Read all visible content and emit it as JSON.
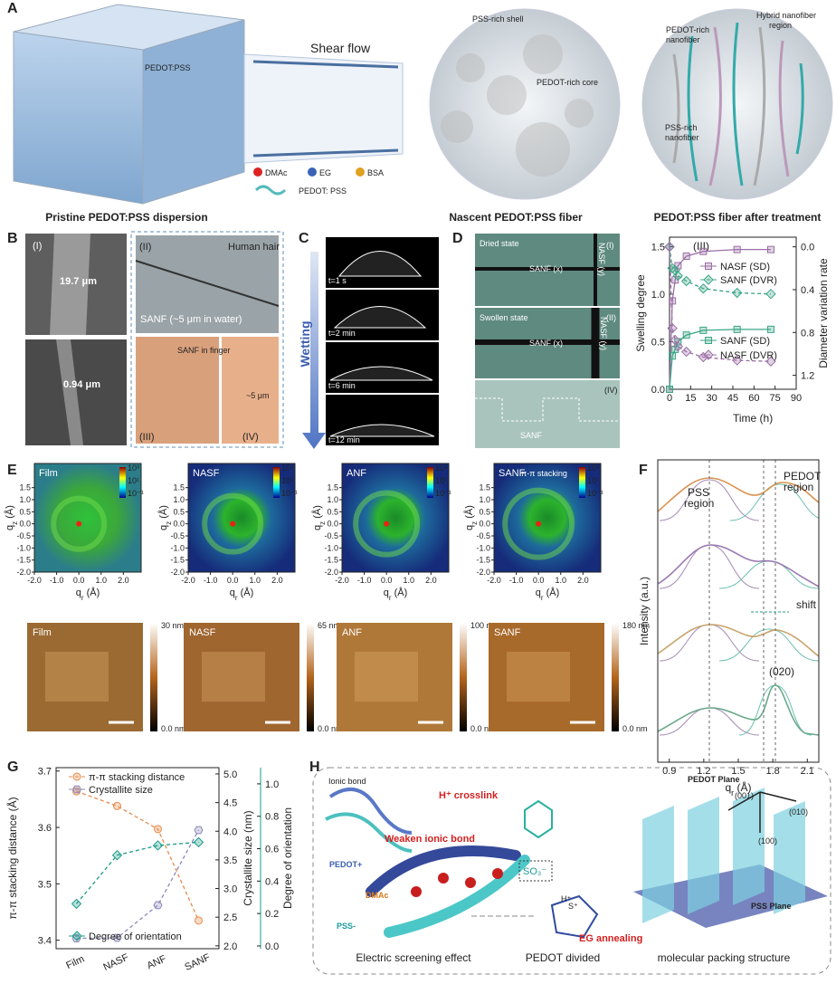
{
  "letters": [
    "A",
    "B",
    "C",
    "D",
    "E",
    "F",
    "G",
    "H"
  ],
  "A": {
    "cube_label": "PEDOT:PSS",
    "shear_flow": "Shear flow",
    "legend": [
      "DMAc",
      "EG",
      "BSA"
    ],
    "pedot_pss": "PEDOT:  PSS",
    "shell": "PSS-rich shell",
    "core": "PEDOT-rich core",
    "pedot_nanofiber": [
      "PEDOT-rich",
      "nanofiber"
    ],
    "hybrid": [
      "Hybrid nanofiber",
      "region"
    ],
    "pss_nanofiber": [
      "PSS-rich",
      "nanofiber"
    ]
  },
  "captions": [
    "Pristine PEDOT:PSS dispersion",
    "Nascent PEDOT:PSS fiber",
    "PEDOT:PSS fiber after treatment"
  ],
  "B": {
    "roman": [
      "(I)",
      "(II)",
      "(III)",
      "(IV)"
    ],
    "diameters": [
      "19.7 μm",
      "0.94 μm"
    ],
    "hair": "Human hair",
    "sanf_water": "SANF  (~5 μm in water)",
    "finger": "SANF in finger",
    "width": "~5 μm"
  },
  "C": {
    "times": [
      "t=1 s",
      "t=2 min",
      "t=6 min",
      "t=12 min"
    ],
    "wetting": "Wetting"
  },
  "D": {
    "dried": "Dried state",
    "swollen": "Swollen state",
    "roman": [
      "(I)",
      "(II)",
      "(IV)"
    ],
    "sanf_x": "SANF (x)",
    "nasf_y": "NASF (y)",
    "sanf": "SANF"
  },
  "E": {
    "names": [
      "Film",
      "NASF",
      "ANF",
      "SANF"
    ],
    "sanf_note": "π-π stacking",
    "q": "q",
    "sub_r": "r",
    "sub_z": "z",
    "unit": " (Å)",
    "colorbar": [
      "10³",
      "10¹",
      "10⁻¹"
    ],
    "xlim": [
      -2,
      2.8
    ],
    "xticks": [
      {
        "value": -2,
        "label": "-2.0"
      },
      {
        "value": -1,
        "label": "-1.0"
      },
      {
        "value": 0,
        "label": "0.0"
      },
      {
        "value": 1,
        "label": "1.0"
      },
      {
        "value": 2,
        "label": "2.0"
      }
    ],
    "ylim": [
      -2,
      2.5
    ],
    "yticks": [
      {
        "value": -2,
        "label": "-2.0"
      },
      -1.5,
      {
        "value": -1,
        "label": "-1.0"
      },
      -0.5,
      {
        "value": 0,
        "label": "0.0"
      },
      0.5,
      {
        "value": 1,
        "label": "1.0"
      },
      1.5
    ],
    "afm_max": [
      "30 nm",
      "65 nm",
      "100 nm",
      "180 nm"
    ],
    "afm_min": "0.0 nm"
  },
  "chart_data": [
    {
      "type": "line",
      "annotation": "(III)",
      "x_label": "Time (h)",
      "y_label": "Swelling degree",
      "y2_label": "Diameter variation rate",
      "x": [
        0,
        2,
        4,
        6,
        12,
        24,
        48,
        72
      ],
      "xlim": [
        0,
        90
      ],
      "xticks": [
        0,
        15,
        30,
        45,
        60,
        75,
        90
      ],
      "ylim": [
        0,
        1.6
      ],
      "yticks": [
        {
          "value": 0,
          "label": "0.0"
        },
        0.5,
        {
          "value": 1,
          "label": "1.0"
        },
        1.5
      ],
      "y2lim": [
        1.33,
        -0.09
      ],
      "y2ticks": [
        {
          "value": 0,
          "label": "0.0"
        },
        0.4,
        0.8,
        1.2
      ],
      "series": [
        {
          "name": "NASF (SD)",
          "color": "#9b6fa6",
          "marker": "square",
          "values": [
            0,
            0.93,
            1.15,
            1.3,
            1.4,
            1.45,
            1.47,
            1.47
          ]
        },
        {
          "name": "SANF (DVR)",
          "color": "#3aa585",
          "marker": "diamond",
          "dashed": true,
          "axis": "y2",
          "values": [
            0,
            0.2,
            0.22,
            0.27,
            0.32,
            0.39,
            0.43,
            0.44
          ]
        },
        {
          "name": "SANF (SD)",
          "color": "#3aa585",
          "marker": "square",
          "values": [
            0,
            0.35,
            0.42,
            0.5,
            0.57,
            0.62,
            0.63,
            0.63
          ]
        },
        {
          "name": "NASF (DVR)",
          "color": "#9b6fa6",
          "marker": "diamond",
          "dashed": true,
          "axis": "y2",
          "values": [
            0,
            0.76,
            0.87,
            0.93,
            0.98,
            1.03,
            1.06,
            1.07
          ]
        }
      ]
    },
    {
      "type": "line",
      "categories": [
        "Film",
        "NASF",
        "ANF",
        "SANF"
      ],
      "y_label": "π-π stacking distance (Å)",
      "y2_label": "Crystallite size (nm)",
      "y3_label": "Degree of orientation",
      "ylim": [
        3.385,
        3.706
      ],
      "yticks": [
        3.4,
        3.5,
        3.6,
        3.7
      ],
      "y2lim": [
        1.95,
        5.11
      ],
      "y2ticks": [
        {
          "value": 2,
          "label": "2.0"
        },
        2.5,
        {
          "value": 3,
          "label": "3.0"
        },
        3.5,
        {
          "value": 4,
          "label": "4.0"
        },
        4.5,
        {
          "value": 5,
          "label": "5.0"
        }
      ],
      "y3lim": [
        -0.017,
        1.1
      ],
      "y3ticks": [
        {
          "value": 0,
          "label": "0.0"
        },
        0.2,
        0.4,
        0.6,
        0.8,
        {
          "value": 1,
          "label": "1.0"
        }
      ],
      "series": [
        {
          "name": "π-π stacking distance",
          "color": "#e98a4b",
          "marker": "circle",
          "dashed": true,
          "values": [
            3.664,
            3.638,
            3.597,
            3.435
          ]
        },
        {
          "name": "Crystallite size",
          "color": "#8c88ba",
          "marker": "hexagon",
          "dashed": true,
          "axis": "y2",
          "values": [
            2.13,
            2.14,
            2.71,
            4.02
          ]
        },
        {
          "name": "Degree of orientation",
          "color": "#1a9c88",
          "marker": "diamond",
          "dashed": true,
          "axis": "y3",
          "values": [
            0.26,
            0.56,
            0.62,
            0.64
          ]
        }
      ]
    },
    {
      "type": "line",
      "y_label": "Intensity (a.u.)",
      "x_label_parts": [
        "q",
        "r",
        " (Å)"
      ],
      "xlim": [
        0.8,
        2.2
      ],
      "xticks": [
        0.9,
        1.2,
        1.5,
        1.8,
        2.1
      ],
      "pss_region": [
        "PSS",
        "region"
      ],
      "pedot_region": [
        "PEDOT",
        "region"
      ],
      "shift": "shift",
      "peak": "(020)"
    }
  ],
  "H": {
    "ionic_bond": "Ionic bond",
    "crosslink": "H⁺ crosslink",
    "so3": "SO₃⁻",
    "weaken": "Weaken ionic bond",
    "h_plus": "H⁺",
    "pedot_plus": "PEDOT+",
    "dmac": "DMAc",
    "pss_minus": "PSS-",
    "eg_annealing": "EG annealing",
    "screening": "Electric screening effect",
    "divided": "PEDOT divided",
    "packing": "molecular packing structure",
    "pedot_plane": "PEDOT Plane",
    "pss_plane": "PSS Plane",
    "dir_001": "(001)",
    "dir_010": "(010)",
    "dir_100": "(100)",
    "s_plus": "S⁺"
  }
}
